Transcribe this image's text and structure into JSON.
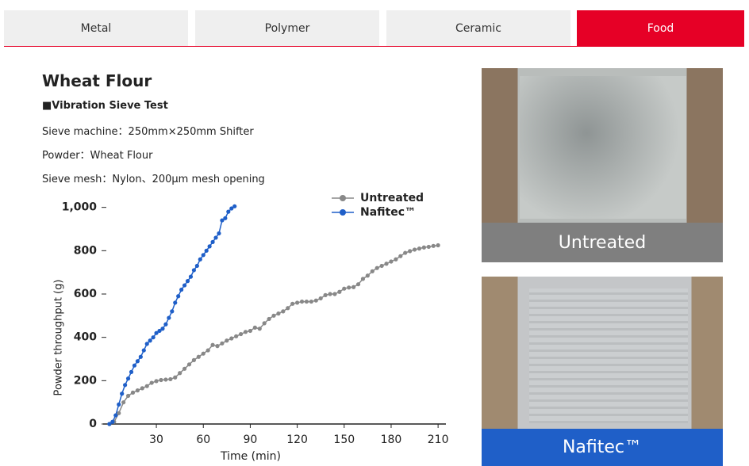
{
  "tabs": [
    "Metal",
    "Polymer",
    "Ceramic",
    "Food"
  ],
  "heading": "Wheat Flour",
  "subheading": "■Vibration Sieve Test",
  "specs": [
    "Sieve machine：250mm×250mm Shifter",
    "Powder：Wheat Flour",
    "Sieve mesh：Nylon、200μm mesh opening"
  ],
  "chart_data": {
    "type": "line",
    "xlabel": "Time (min)",
    "ylabel": "Powder throughput (g)",
    "xlim": [
      -4,
      215
    ],
    "ylim": [
      0,
      1050
    ],
    "xticks": [
      30,
      60,
      90,
      120,
      150,
      180,
      210
    ],
    "yticks": [
      0,
      200,
      400,
      600,
      800,
      {
        "value": 1000,
        "label": "1,000"
      }
    ],
    "legend": "upper-right",
    "series": [
      {
        "name": "Untreated",
        "color": "#888888",
        "x": [
          0,
          3,
          6,
          9,
          12,
          15,
          18,
          21,
          24,
          27,
          30,
          33,
          36,
          39,
          42,
          45,
          48,
          51,
          54,
          57,
          60,
          63,
          66,
          69,
          72,
          75,
          78,
          81,
          84,
          87,
          90,
          93,
          96,
          99,
          102,
          105,
          108,
          111,
          114,
          117,
          120,
          123,
          126,
          129,
          132,
          135,
          138,
          141,
          144,
          147,
          150,
          153,
          156,
          159,
          162,
          165,
          168,
          171,
          174,
          177,
          180,
          183,
          186,
          189,
          192,
          195,
          198,
          201,
          204,
          207,
          210
        ],
        "values": [
          0,
          10,
          50,
          100,
          130,
          145,
          155,
          165,
          175,
          190,
          198,
          203,
          205,
          207,
          215,
          235,
          255,
          275,
          295,
          310,
          325,
          340,
          365,
          360,
          372,
          385,
          395,
          405,
          415,
          425,
          430,
          445,
          440,
          465,
          485,
          500,
          510,
          520,
          535,
          555,
          560,
          565,
          565,
          565,
          570,
          580,
          595,
          600,
          600,
          610,
          625,
          630,
          632,
          645,
          670,
          685,
          705,
          720,
          730,
          740,
          750,
          760,
          775,
          790,
          798,
          805,
          810,
          815,
          818,
          822,
          825
        ]
      },
      {
        "name": "Nafitec™",
        "color": "#1f5fc8",
        "x": [
          0,
          2,
          4,
          6,
          8,
          10,
          12,
          14,
          16,
          18,
          20,
          22,
          24,
          26,
          28,
          30,
          32,
          34,
          36,
          38,
          40,
          42,
          44,
          46,
          48,
          50,
          52,
          54,
          56,
          58,
          60,
          62,
          64,
          66,
          68,
          70,
          72,
          74,
          76,
          78,
          80
        ],
        "values": [
          0,
          10,
          40,
          90,
          140,
          180,
          210,
          240,
          270,
          290,
          310,
          340,
          370,
          385,
          400,
          420,
          430,
          440,
          460,
          490,
          520,
          560,
          590,
          620,
          640,
          660,
          680,
          710,
          730,
          760,
          780,
          800,
          820,
          840,
          860,
          880,
          940,
          950,
          980,
          995,
          1005
        ]
      }
    ]
  },
  "photos": [
    {
      "label": "Untreated"
    },
    {
      "label": "Nafitec™"
    }
  ]
}
